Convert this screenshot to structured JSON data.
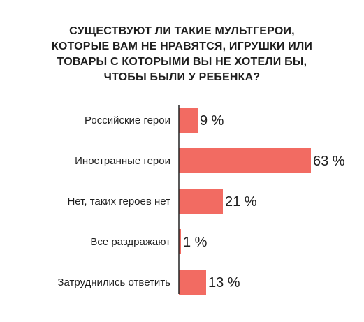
{
  "chart_data": {
    "type": "bar",
    "orientation": "horizontal",
    "title_lines": [
      "СУЩЕСТВУЮТ ЛИ ТАКИЕ МУЛЬТГЕРОИ,",
      "КОТОРЫЕ ВАМ НЕ НРАВЯТСЯ, ИГРУШКИ ИЛИ",
      "ТОВАРЫ С КОТОРЫМИ ВЫ НЕ ХОТЕЛИ БЫ,",
      "ЧТОБЫ БЫЛИ У РЕБЕНКА?"
    ],
    "categories": [
      "Российские герои",
      "Иностранные герои",
      "Нет, таких героев нет",
      "Все раздражают",
      "Затруднились ответить"
    ],
    "values": [
      9,
      63,
      21,
      1,
      13
    ],
    "value_labels": [
      "9 %",
      "63 %",
      "21 %",
      "1 %",
      "13 %"
    ],
    "unit": "%",
    "bar_color": "#f26b62",
    "axis_color": "#222222",
    "grid": false,
    "legend": "none"
  }
}
